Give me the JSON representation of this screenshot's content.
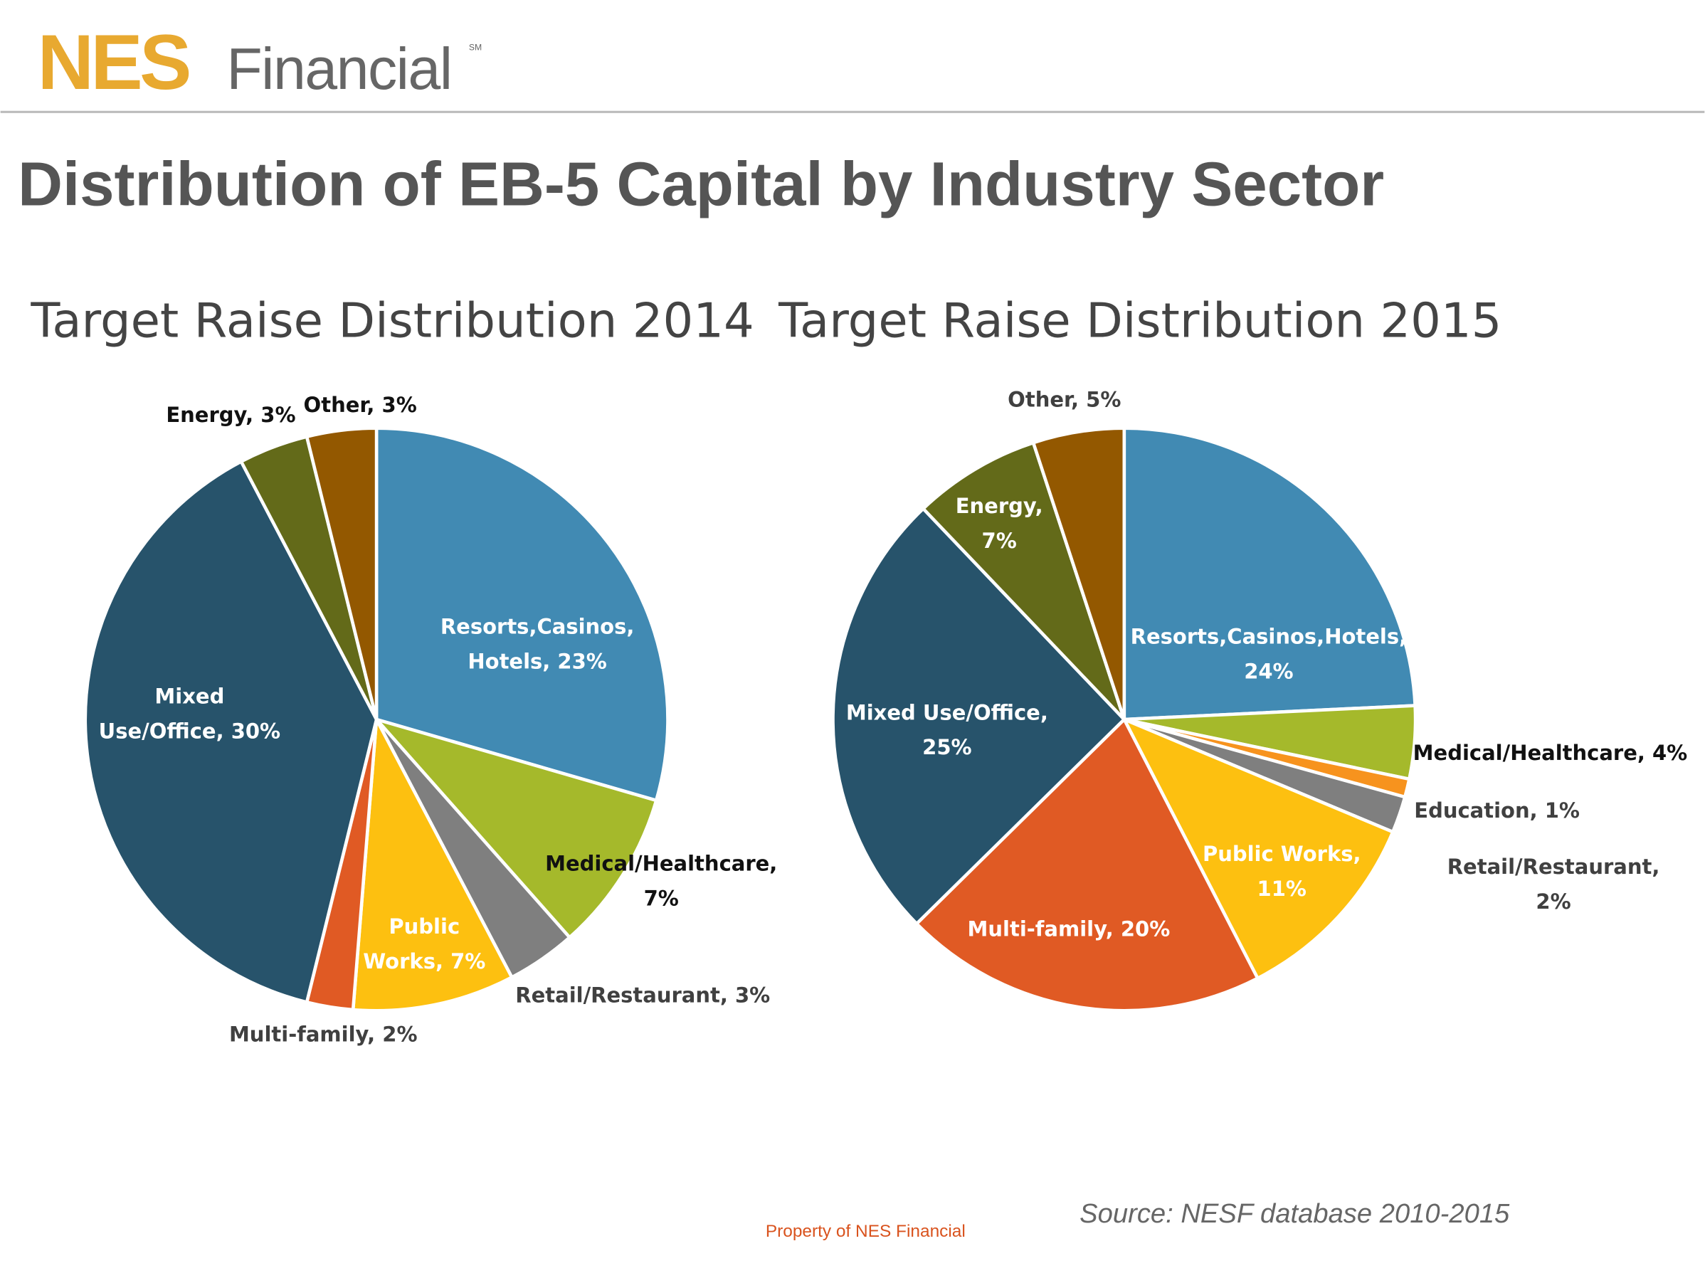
{
  "logo": {
    "brand": "NES",
    "name": "Financial",
    "mark": "SM"
  },
  "title": "Distribution of EB-5 Capital by Industry Sector",
  "source": "Source:  NESF database 2010-2015",
  "footer": "Property of NES Financial",
  "chart_data": [
    {
      "type": "pie",
      "title": "Target Raise Distribution 2014",
      "values": [
        23,
        7,
        3,
        7,
        2,
        30,
        3,
        3
      ],
      "value_labels": [
        "Resorts,Casinos, Hotels, 23%",
        "Medical/Healthcare, 7%",
        "Retail/Restaurant, 3%",
        "Public Works, 7%",
        "Multi-family, 2%",
        "Mixed Use/Office, 30%",
        "Energy, 3%",
        "Other, 3%"
      ],
      "colors": [
        "#418ab3",
        "#a5b92b",
        "#7f7f7f",
        "#fdc010",
        "#e05a24",
        "#27536b",
        "#636a19",
        "#935800"
      ]
    },
    {
      "type": "pie",
      "title": "Target Raise Distribution 2015",
      "values": [
        24,
        4,
        1,
        2,
        11,
        20,
        25,
        7,
        5
      ],
      "value_labels": [
        "Resorts,Casinos,Hotels, 24%",
        "Medical/Healthcare, 4%",
        "Education, 1%",
        "Retail/Restaurant, 2%",
        "Public Works, 11%",
        "Multi-family, 20%",
        "Mixed Use/Office, 25%",
        "Energy, 7%",
        "Other, 5%"
      ],
      "colors": [
        "#418ab3",
        "#a5b92b",
        "#f7931e",
        "#7f7f7f",
        "#fdc010",
        "#e05a24",
        "#27536b",
        "#636a19",
        "#935800"
      ]
    }
  ]
}
